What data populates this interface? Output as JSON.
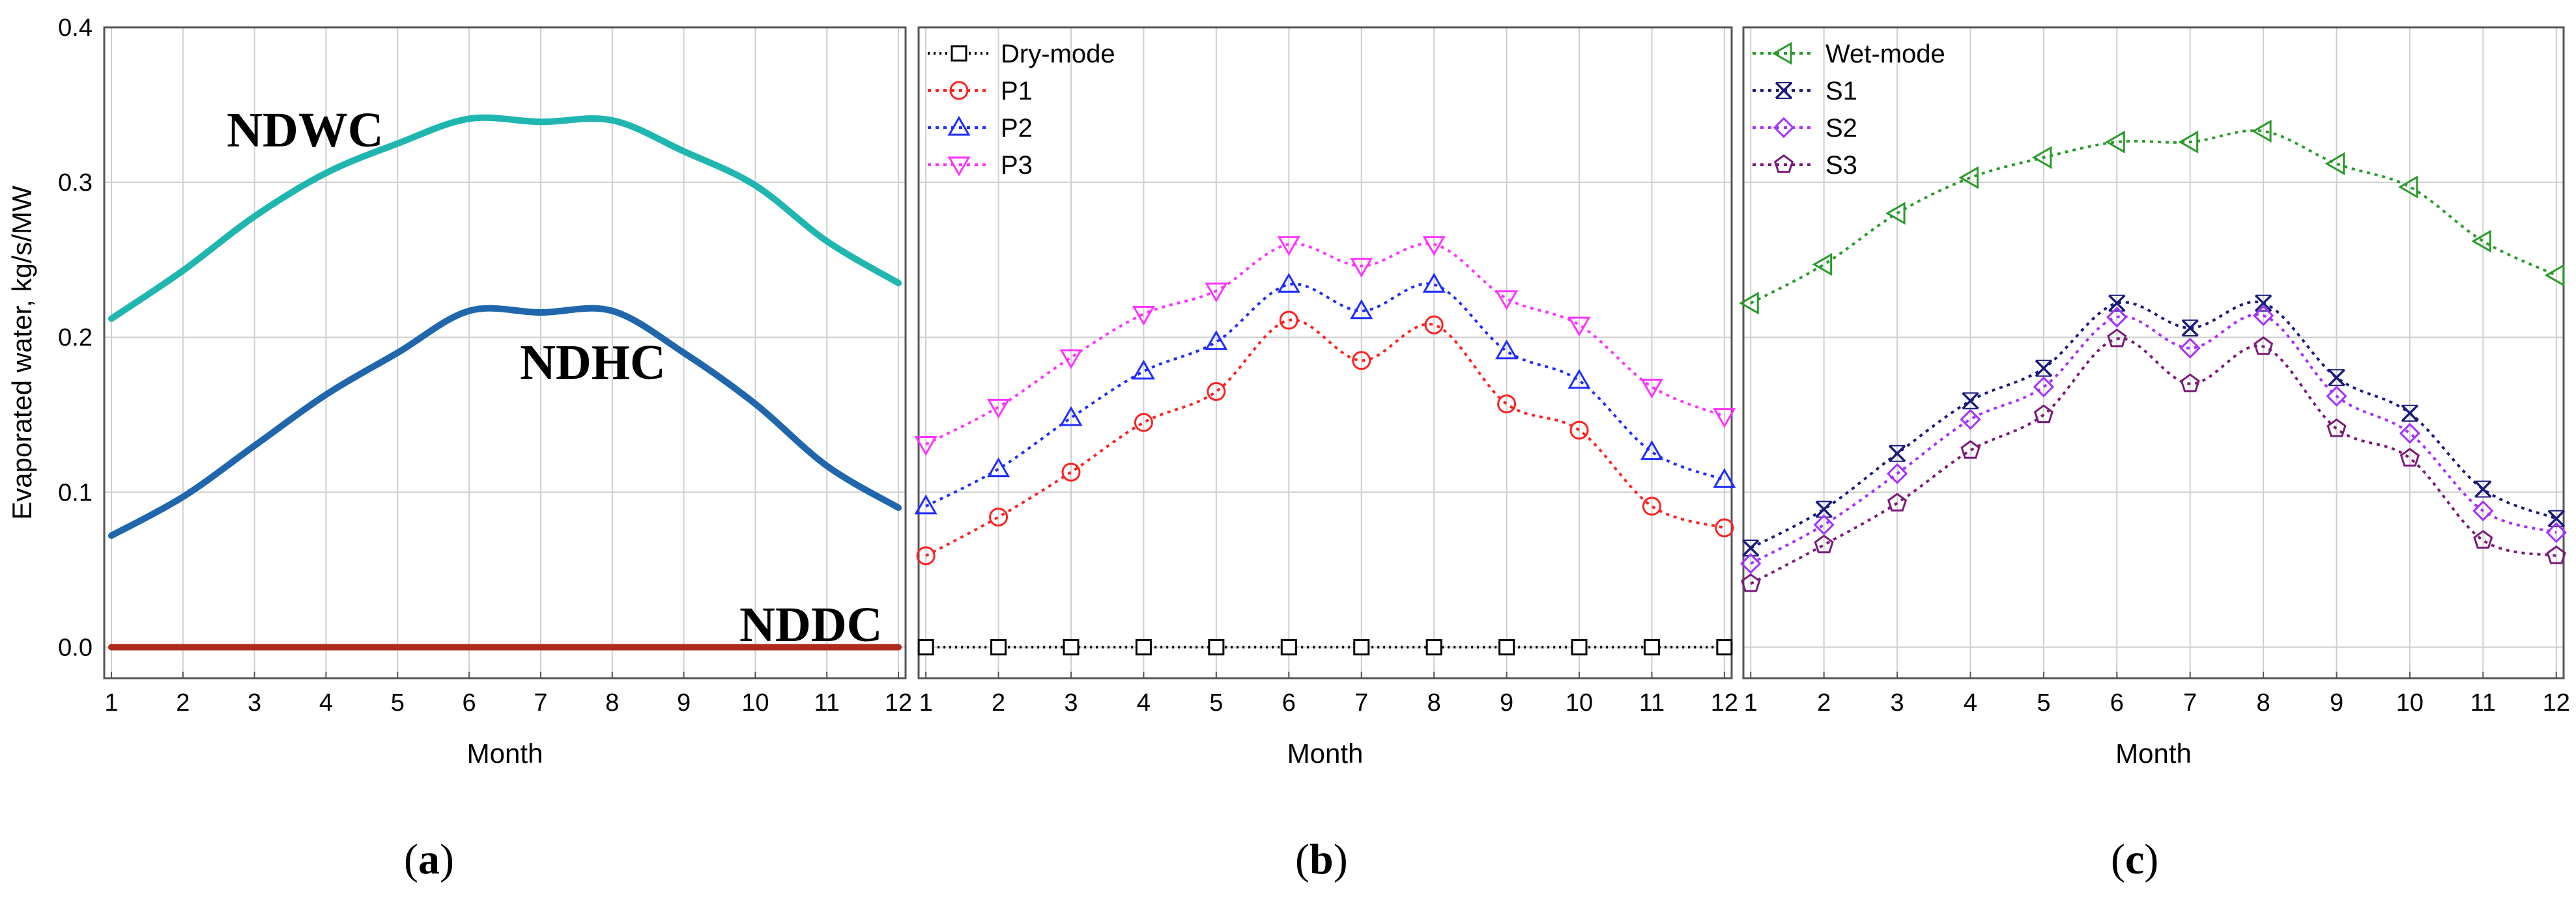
{
  "colors": {
    "NDWC": "#20b6b0",
    "NDHC": "#1f66ad",
    "NDDC": "#b02a1e",
    "Dry-mode": "#000000",
    "P1": "#ff2020",
    "P2": "#1f2cff",
    "P3": "#ff33ff",
    "Wet-mode": "#2a9a2a",
    "S1": "#1a1a7a",
    "S2": "#a630ff",
    "S3": "#7a1a7a"
  },
  "chart_data": [
    {
      "type": "line",
      "panel_label": "a",
      "xlabel": "Month",
      "ylabel": "Evaporated water, kg/s/MW",
      "x": [
        1,
        2,
        3,
        4,
        5,
        6,
        7,
        8,
        9,
        10,
        11,
        12
      ],
      "xlim": [
        0.9,
        12.1
      ],
      "ylim": [
        -0.02,
        0.4
      ],
      "yticks": [
        "0.0",
        "0.1",
        "0.2",
        "0.3",
        "0.4"
      ],
      "grid": true,
      "legend": "none",
      "series": [
        {
          "name": "NDWC",
          "values": [
            0.212,
            0.243,
            0.278,
            0.306,
            0.325,
            0.341,
            0.339,
            0.34,
            0.32,
            0.298,
            0.262,
            0.235
          ]
        },
        {
          "name": "NDHC",
          "values": [
            0.072,
            0.097,
            0.13,
            0.163,
            0.19,
            0.217,
            0.216,
            0.217,
            0.19,
            0.157,
            0.117,
            0.09
          ]
        },
        {
          "name": "NDDC",
          "values": [
            0,
            0,
            0,
            0,
            0,
            0,
            0,
            0,
            0,
            0,
            0,
            0
          ]
        }
      ]
    },
    {
      "type": "line",
      "panel_label": "b",
      "xlabel": "Month",
      "x": [
        1,
        2,
        3,
        4,
        5,
        6,
        7,
        8,
        9,
        10,
        11,
        12
      ],
      "xlim": [
        0.9,
        12.1
      ],
      "ylim": [
        -0.02,
        0.4
      ],
      "grid": true,
      "legend": "top-left",
      "series": [
        {
          "name": "Dry-mode",
          "marker": "square",
          "values": [
            0,
            0,
            0,
            0,
            0,
            0,
            0,
            0,
            0,
            0,
            0,
            0
          ]
        },
        {
          "name": "P1",
          "marker": "circle",
          "values": [
            0.059,
            0.084,
            0.113,
            0.145,
            0.165,
            0.211,
            0.185,
            0.208,
            0.157,
            0.14,
            0.091,
            0.077
          ]
        },
        {
          "name": "P2",
          "marker": "triangle-up",
          "values": [
            0.091,
            0.115,
            0.148,
            0.178,
            0.197,
            0.234,
            0.217,
            0.234,
            0.191,
            0.172,
            0.126,
            0.108
          ]
        },
        {
          "name": "P3",
          "marker": "triangle-down",
          "values": [
            0.131,
            0.155,
            0.187,
            0.215,
            0.23,
            0.26,
            0.246,
            0.26,
            0.225,
            0.208,
            0.168,
            0.149
          ]
        }
      ]
    },
    {
      "type": "line",
      "panel_label": "c",
      "xlabel": "Month",
      "x": [
        1,
        2,
        3,
        4,
        5,
        6,
        7,
        8,
        9,
        10,
        11,
        12
      ],
      "xlim": [
        0.9,
        12.1
      ],
      "ylim": [
        -0.02,
        0.4
      ],
      "grid": true,
      "legend": "top-left",
      "series": [
        {
          "name": "Wet-mode",
          "marker": "triangle-left",
          "values": [
            0.222,
            0.247,
            0.28,
            0.303,
            0.316,
            0.326,
            0.326,
            0.333,
            0.312,
            0.297,
            0.262,
            0.24
          ]
        },
        {
          "name": "S1",
          "marker": "x-cross",
          "values": [
            0.064,
            0.089,
            0.125,
            0.159,
            0.18,
            0.222,
            0.206,
            0.222,
            0.174,
            0.151,
            0.102,
            0.083
          ]
        },
        {
          "name": "S2",
          "marker": "diamond",
          "values": [
            0.054,
            0.079,
            0.112,
            0.147,
            0.168,
            0.213,
            0.193,
            0.214,
            0.162,
            0.138,
            0.088,
            0.074
          ]
        },
        {
          "name": "S3",
          "marker": "pentagon",
          "values": [
            0.041,
            0.066,
            0.093,
            0.127,
            0.15,
            0.199,
            0.17,
            0.194,
            0.141,
            0.122,
            0.069,
            0.059
          ]
        }
      ]
    }
  ]
}
